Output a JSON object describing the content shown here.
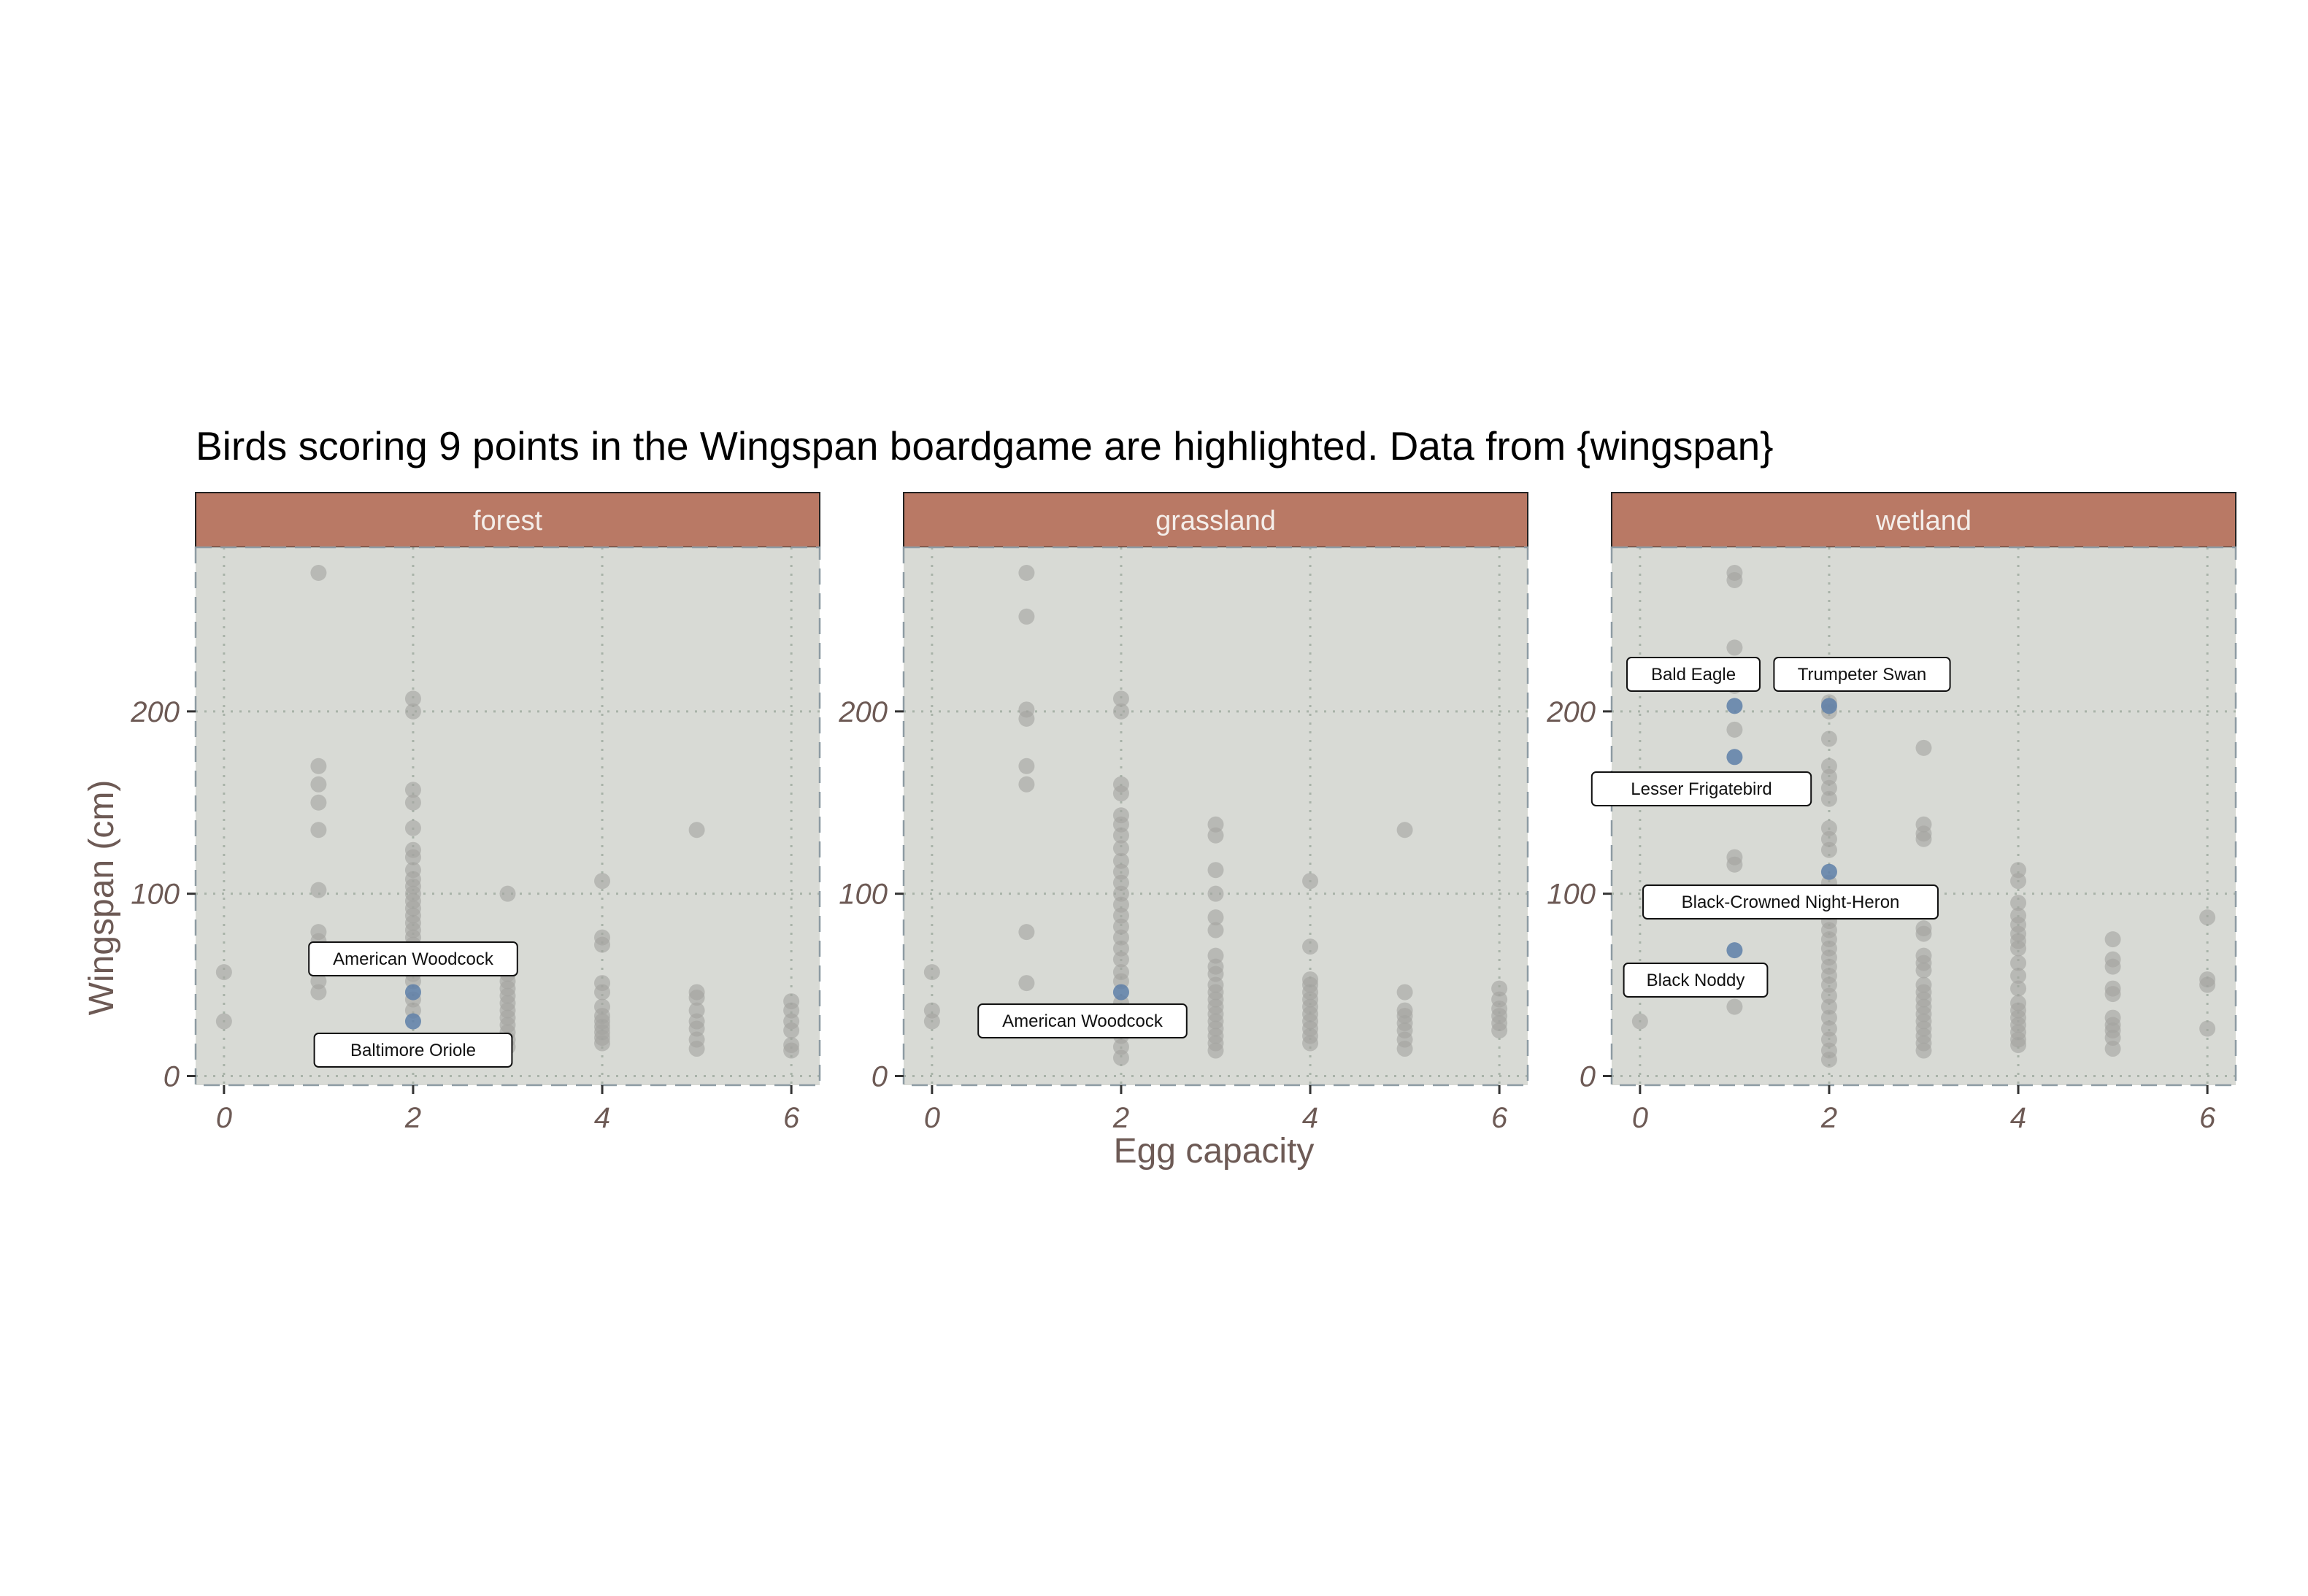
{
  "title": "Birds scoring 9 points in the Wingspan boardgame are highlighted. Data from {wingspan}",
  "xlabel": "Egg capacity",
  "ylabel": "Wingspan (cm)",
  "colors": {
    "strip_fill": "#b97965",
    "strip_text": "#f4eeea",
    "panel_bg": "#d8dad5",
    "grid": "#a9b3a9",
    "point_gray": "#a3a3a0",
    "point_highlight": "#5e7fa8",
    "axis_text": "#6d5a55"
  },
  "chart_data": {
    "type": "scatter",
    "xlim": [
      -0.3,
      6.3
    ],
    "ylim": [
      -5,
      290
    ],
    "x_ticks": [
      0,
      2,
      4,
      6
    ],
    "y_ticks": [
      0,
      100,
      200
    ],
    "x_tick_labels": [
      "0",
      "2",
      "4",
      "6"
    ],
    "y_tick_labels": [
      "0",
      "100",
      "200"
    ],
    "grid": true,
    "panels": [
      {
        "name": "forest",
        "points": [
          {
            "x": 0,
            "y": 57
          },
          {
            "x": 0,
            "y": 30
          },
          {
            "x": 1,
            "y": 276
          },
          {
            "x": 1,
            "y": 170
          },
          {
            "x": 1,
            "y": 160
          },
          {
            "x": 1,
            "y": 150
          },
          {
            "x": 1,
            "y": 135
          },
          {
            "x": 1,
            "y": 102
          },
          {
            "x": 1,
            "y": 79
          },
          {
            "x": 1,
            "y": 74
          },
          {
            "x": 1,
            "y": 52
          },
          {
            "x": 1,
            "y": 46
          },
          {
            "x": 2,
            "y": 207
          },
          {
            "x": 2,
            "y": 200
          },
          {
            "x": 2,
            "y": 157
          },
          {
            "x": 2,
            "y": 150
          },
          {
            "x": 2,
            "y": 136
          },
          {
            "x": 2,
            "y": 124
          },
          {
            "x": 2,
            "y": 120
          },
          {
            "x": 2,
            "y": 113
          },
          {
            "x": 2,
            "y": 108
          },
          {
            "x": 2,
            "y": 104
          },
          {
            "x": 2,
            "y": 100
          },
          {
            "x": 2,
            "y": 96
          },
          {
            "x": 2,
            "y": 92
          },
          {
            "x": 2,
            "y": 88
          },
          {
            "x": 2,
            "y": 84
          },
          {
            "x": 2,
            "y": 80
          },
          {
            "x": 2,
            "y": 76
          },
          {
            "x": 2,
            "y": 72
          },
          {
            "x": 2,
            "y": 68
          },
          {
            "x": 2,
            "y": 64
          },
          {
            "x": 2,
            "y": 60
          },
          {
            "x": 2,
            "y": 56
          },
          {
            "x": 2,
            "y": 52
          },
          {
            "x": 2,
            "y": 42
          },
          {
            "x": 2,
            "y": 36
          },
          {
            "x": 3,
            "y": 100
          },
          {
            "x": 3,
            "y": 60
          },
          {
            "x": 3,
            "y": 56
          },
          {
            "x": 3,
            "y": 52
          },
          {
            "x": 3,
            "y": 48
          },
          {
            "x": 3,
            "y": 44
          },
          {
            "x": 3,
            "y": 40
          },
          {
            "x": 3,
            "y": 36
          },
          {
            "x": 3,
            "y": 32
          },
          {
            "x": 3,
            "y": 28
          },
          {
            "x": 3,
            "y": 24
          },
          {
            "x": 3,
            "y": 20
          },
          {
            "x": 3,
            "y": 16
          },
          {
            "x": 4,
            "y": 107
          },
          {
            "x": 4,
            "y": 76
          },
          {
            "x": 4,
            "y": 72
          },
          {
            "x": 4,
            "y": 51
          },
          {
            "x": 4,
            "y": 46
          },
          {
            "x": 4,
            "y": 38
          },
          {
            "x": 4,
            "y": 33
          },
          {
            "x": 4,
            "y": 30
          },
          {
            "x": 4,
            "y": 27
          },
          {
            "x": 4,
            "y": 24
          },
          {
            "x": 4,
            "y": 21
          },
          {
            "x": 4,
            "y": 18
          },
          {
            "x": 5,
            "y": 135
          },
          {
            "x": 5,
            "y": 46
          },
          {
            "x": 5,
            "y": 43
          },
          {
            "x": 5,
            "y": 36
          },
          {
            "x": 5,
            "y": 30
          },
          {
            "x": 5,
            "y": 26
          },
          {
            "x": 5,
            "y": 20
          },
          {
            "x": 5,
            "y": 15
          },
          {
            "x": 6,
            "y": 41
          },
          {
            "x": 6,
            "y": 36
          },
          {
            "x": 6,
            "y": 30
          },
          {
            "x": 6,
            "y": 25
          },
          {
            "x": 6,
            "y": 17
          },
          {
            "x": 6,
            "y": 14
          }
        ],
        "highlights": [
          {
            "x": 2,
            "y": 46,
            "label": "American Woodcock"
          },
          {
            "x": 2,
            "y": 30,
            "label": "Baltimore Oriole"
          }
        ]
      },
      {
        "name": "grassland",
        "points": [
          {
            "x": 0,
            "y": 57
          },
          {
            "x": 0,
            "y": 36
          },
          {
            "x": 0,
            "y": 30
          },
          {
            "x": 1,
            "y": 276
          },
          {
            "x": 1,
            "y": 252
          },
          {
            "x": 1,
            "y": 201
          },
          {
            "x": 1,
            "y": 196
          },
          {
            "x": 1,
            "y": 170
          },
          {
            "x": 1,
            "y": 160
          },
          {
            "x": 1,
            "y": 79
          },
          {
            "x": 1,
            "y": 51
          },
          {
            "x": 2,
            "y": 207
          },
          {
            "x": 2,
            "y": 200
          },
          {
            "x": 2,
            "y": 160
          },
          {
            "x": 2,
            "y": 155
          },
          {
            "x": 2,
            "y": 143
          },
          {
            "x": 2,
            "y": 138
          },
          {
            "x": 2,
            "y": 132
          },
          {
            "x": 2,
            "y": 125
          },
          {
            "x": 2,
            "y": 118
          },
          {
            "x": 2,
            "y": 112
          },
          {
            "x": 2,
            "y": 106
          },
          {
            "x": 2,
            "y": 100
          },
          {
            "x": 2,
            "y": 94
          },
          {
            "x": 2,
            "y": 88
          },
          {
            "x": 2,
            "y": 82
          },
          {
            "x": 2,
            "y": 76
          },
          {
            "x": 2,
            "y": 70
          },
          {
            "x": 2,
            "y": 64
          },
          {
            "x": 2,
            "y": 57
          },
          {
            "x": 2,
            "y": 52
          },
          {
            "x": 2,
            "y": 40
          },
          {
            "x": 2,
            "y": 34
          },
          {
            "x": 2,
            "y": 28
          },
          {
            "x": 2,
            "y": 22
          },
          {
            "x": 2,
            "y": 16
          },
          {
            "x": 2,
            "y": 10
          },
          {
            "x": 3,
            "y": 138
          },
          {
            "x": 3,
            "y": 132
          },
          {
            "x": 3,
            "y": 113
          },
          {
            "x": 3,
            "y": 100
          },
          {
            "x": 3,
            "y": 87
          },
          {
            "x": 3,
            "y": 80
          },
          {
            "x": 3,
            "y": 66
          },
          {
            "x": 3,
            "y": 60
          },
          {
            "x": 3,
            "y": 56
          },
          {
            "x": 3,
            "y": 50
          },
          {
            "x": 3,
            "y": 46
          },
          {
            "x": 3,
            "y": 42
          },
          {
            "x": 3,
            "y": 38
          },
          {
            "x": 3,
            "y": 34
          },
          {
            "x": 3,
            "y": 30
          },
          {
            "x": 3,
            "y": 26
          },
          {
            "x": 3,
            "y": 22
          },
          {
            "x": 3,
            "y": 18
          },
          {
            "x": 3,
            "y": 14
          },
          {
            "x": 4,
            "y": 107
          },
          {
            "x": 4,
            "y": 71
          },
          {
            "x": 4,
            "y": 53
          },
          {
            "x": 4,
            "y": 50
          },
          {
            "x": 4,
            "y": 46
          },
          {
            "x": 4,
            "y": 42
          },
          {
            "x": 4,
            "y": 38
          },
          {
            "x": 4,
            "y": 34
          },
          {
            "x": 4,
            "y": 30
          },
          {
            "x": 4,
            "y": 26
          },
          {
            "x": 4,
            "y": 22
          },
          {
            "x": 4,
            "y": 18
          },
          {
            "x": 5,
            "y": 135
          },
          {
            "x": 5,
            "y": 46
          },
          {
            "x": 5,
            "y": 36
          },
          {
            "x": 5,
            "y": 33
          },
          {
            "x": 5,
            "y": 29
          },
          {
            "x": 5,
            "y": 25
          },
          {
            "x": 5,
            "y": 20
          },
          {
            "x": 5,
            "y": 15
          },
          {
            "x": 6,
            "y": 48
          },
          {
            "x": 6,
            "y": 42
          },
          {
            "x": 6,
            "y": 37
          },
          {
            "x": 6,
            "y": 33
          },
          {
            "x": 6,
            "y": 29
          },
          {
            "x": 6,
            "y": 25
          }
        ],
        "highlights": [
          {
            "x": 2,
            "y": 46,
            "label": "American Woodcock"
          }
        ]
      },
      {
        "name": "wetland",
        "points": [
          {
            "x": 0,
            "y": 30
          },
          {
            "x": 1,
            "y": 276
          },
          {
            "x": 1,
            "y": 272
          },
          {
            "x": 1,
            "y": 235
          },
          {
            "x": 1,
            "y": 214
          },
          {
            "x": 1,
            "y": 190
          },
          {
            "x": 1,
            "y": 120
          },
          {
            "x": 1,
            "y": 116
          },
          {
            "x": 1,
            "y": 38
          },
          {
            "x": 2,
            "y": 205
          },
          {
            "x": 2,
            "y": 200
          },
          {
            "x": 2,
            "y": 185
          },
          {
            "x": 2,
            "y": 170
          },
          {
            "x": 2,
            "y": 164
          },
          {
            "x": 2,
            "y": 158
          },
          {
            "x": 2,
            "y": 152
          },
          {
            "x": 2,
            "y": 136
          },
          {
            "x": 2,
            "y": 130
          },
          {
            "x": 2,
            "y": 124
          },
          {
            "x": 2,
            "y": 106
          },
          {
            "x": 2,
            "y": 100
          },
          {
            "x": 2,
            "y": 95
          },
          {
            "x": 2,
            "y": 90
          },
          {
            "x": 2,
            "y": 85
          },
          {
            "x": 2,
            "y": 80
          },
          {
            "x": 2,
            "y": 75
          },
          {
            "x": 2,
            "y": 70
          },
          {
            "x": 2,
            "y": 65
          },
          {
            "x": 2,
            "y": 60
          },
          {
            "x": 2,
            "y": 55
          },
          {
            "x": 2,
            "y": 50
          },
          {
            "x": 2,
            "y": 44
          },
          {
            "x": 2,
            "y": 38
          },
          {
            "x": 2,
            "y": 32
          },
          {
            "x": 2,
            "y": 26
          },
          {
            "x": 2,
            "y": 20
          },
          {
            "x": 2,
            "y": 14
          },
          {
            "x": 2,
            "y": 9
          },
          {
            "x": 3,
            "y": 180
          },
          {
            "x": 3,
            "y": 138
          },
          {
            "x": 3,
            "y": 133
          },
          {
            "x": 3,
            "y": 130
          },
          {
            "x": 3,
            "y": 100
          },
          {
            "x": 3,
            "y": 81
          },
          {
            "x": 3,
            "y": 78
          },
          {
            "x": 3,
            "y": 66
          },
          {
            "x": 3,
            "y": 62
          },
          {
            "x": 3,
            "y": 58
          },
          {
            "x": 3,
            "y": 50
          },
          {
            "x": 3,
            "y": 46
          },
          {
            "x": 3,
            "y": 42
          },
          {
            "x": 3,
            "y": 38
          },
          {
            "x": 3,
            "y": 34
          },
          {
            "x": 3,
            "y": 30
          },
          {
            "x": 3,
            "y": 26
          },
          {
            "x": 3,
            "y": 22
          },
          {
            "x": 3,
            "y": 18
          },
          {
            "x": 3,
            "y": 14
          },
          {
            "x": 4,
            "y": 113
          },
          {
            "x": 4,
            "y": 107
          },
          {
            "x": 4,
            "y": 95
          },
          {
            "x": 4,
            "y": 88
          },
          {
            "x": 4,
            "y": 83
          },
          {
            "x": 4,
            "y": 78
          },
          {
            "x": 4,
            "y": 74
          },
          {
            "x": 4,
            "y": 70
          },
          {
            "x": 4,
            "y": 62
          },
          {
            "x": 4,
            "y": 55
          },
          {
            "x": 4,
            "y": 48
          },
          {
            "x": 4,
            "y": 40
          },
          {
            "x": 4,
            "y": 36
          },
          {
            "x": 4,
            "y": 32
          },
          {
            "x": 4,
            "y": 28
          },
          {
            "x": 4,
            "y": 24
          },
          {
            "x": 4,
            "y": 20
          },
          {
            "x": 4,
            "y": 17
          },
          {
            "x": 5,
            "y": 75
          },
          {
            "x": 5,
            "y": 64
          },
          {
            "x": 5,
            "y": 60
          },
          {
            "x": 5,
            "y": 48
          },
          {
            "x": 5,
            "y": 45
          },
          {
            "x": 5,
            "y": 32
          },
          {
            "x": 5,
            "y": 28
          },
          {
            "x": 5,
            "y": 25
          },
          {
            "x": 5,
            "y": 21
          },
          {
            "x": 5,
            "y": 15
          },
          {
            "x": 6,
            "y": 87
          },
          {
            "x": 6,
            "y": 53
          },
          {
            "x": 6,
            "y": 50
          },
          {
            "x": 6,
            "y": 26
          }
        ],
        "highlights": [
          {
            "x": 1,
            "y": 203,
            "label": "Bald Eagle"
          },
          {
            "x": 2,
            "y": 203,
            "label": "Trumpeter Swan"
          },
          {
            "x": 1,
            "y": 175,
            "label": "Lesser Frigatebird"
          },
          {
            "x": 2,
            "y": 112,
            "label": "Black-Crowned Night-Heron"
          },
          {
            "x": 1,
            "y": 69,
            "label": "Black Noddy"
          }
        ]
      }
    ]
  }
}
